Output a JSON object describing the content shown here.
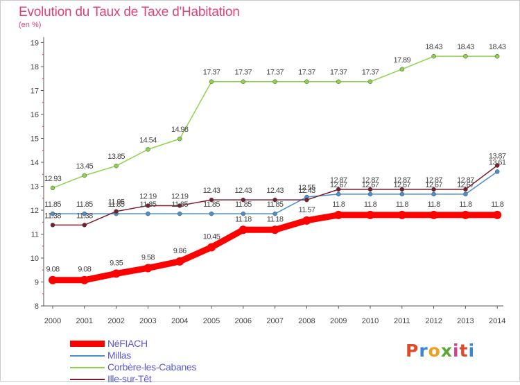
{
  "title": "Evolution du Taux de Taxe d'Habitation",
  "unit_label": "(en %)",
  "brand": "Proxiti",
  "chart_data": {
    "type": "line",
    "title": "Evolution du Taux de Taxe d'Habitation",
    "ylabel": "(en %)",
    "ylim": [
      8,
      19
    ],
    "yticks": [
      8,
      9,
      10,
      11,
      12,
      13,
      14,
      15,
      16,
      17,
      18,
      19
    ],
    "grid": false,
    "legend_position": "bottom-left",
    "x": [
      "2000",
      "2001",
      "2002",
      "2003",
      "2004",
      "2005",
      "2006",
      "2007",
      "2008",
      "2009",
      "2010",
      "2011",
      "2012",
      "2013",
      "2014"
    ],
    "series": [
      {
        "name": "NéFIACH",
        "color": "#ff0000",
        "values": [
          9.08,
          9.08,
          9.35,
          9.58,
          9.86,
          10.45,
          11.18,
          11.18,
          11.57,
          11.8,
          11.8,
          11.8,
          11.8,
          11.8,
          11.8
        ],
        "labels": [
          "9.08",
          "9.08",
          "9.35",
          "9.58",
          "9.86",
          "10.45",
          "11.18",
          "11.18",
          "11.57",
          "11.8",
          "11.8",
          "11.8",
          "11.8",
          "11.8",
          "11.8"
        ]
      },
      {
        "name": "Millas",
        "color": "#4a8fcf",
        "values": [
          11.85,
          11.85,
          11.85,
          11.85,
          11.85,
          11.85,
          11.85,
          11.85,
          12.55,
          12.67,
          12.67,
          12.67,
          12.67,
          12.67,
          13.61
        ],
        "labels": [
          "11.85",
          "11.85",
          "11.85",
          "11.85",
          "11.85",
          "11.85",
          "11.85",
          "11.85",
          "12.55",
          "12.67",
          "12.67",
          "12.67",
          "12.67",
          "12.67",
          "13.61"
        ]
      },
      {
        "name": "Corbère-les-Cabanes",
        "color": "#8ed24a",
        "values": [
          12.93,
          13.45,
          13.85,
          14.54,
          14.98,
          17.37,
          17.37,
          17.37,
          17.37,
          17.37,
          17.37,
          17.89,
          18.43,
          18.43,
          18.43
        ],
        "labels": [
          "12.93",
          "13.45",
          "13.85",
          "14.54",
          "14.98",
          "17.37",
          "17.37",
          "17.37",
          "17.37",
          "17.37",
          "17.37",
          "17.89",
          "18.43",
          "18.43",
          "18.43"
        ]
      },
      {
        "name": "Ille-sur-Têt",
        "color": "#7a1e2c",
        "values": [
          11.38,
          11.38,
          11.95,
          12.19,
          12.19,
          12.43,
          12.43,
          12.43,
          12.43,
          12.87,
          12.87,
          12.87,
          12.87,
          12.87,
          13.87
        ],
        "labels": [
          "11.38",
          "11.38",
          "11.95",
          "12.19",
          "12.19",
          "12.43",
          "12.43",
          "12.43",
          "12.43",
          "12.87",
          "12.87",
          "12.87",
          "12.87",
          "12.87",
          "13.87"
        ]
      }
    ]
  }
}
